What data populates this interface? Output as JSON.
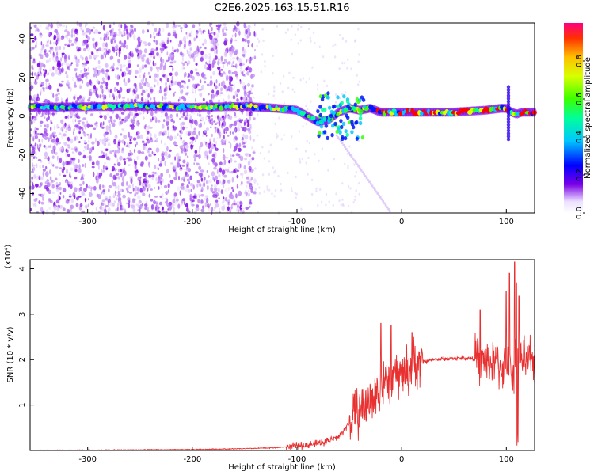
{
  "title": "C2E6.2025.163.15.51.R16",
  "chart_data": [
    {
      "type": "heatmap",
      "xlabel": "Height of straight line (km)",
      "ylabel": "Frequency (Hz)",
      "xlim": [
        -355,
        127
      ],
      "ylim": [
        -50,
        48
      ],
      "xticks": [
        -300,
        -200,
        -100,
        0,
        100
      ],
      "yticks": [
        -40,
        -20,
        0,
        20,
        40
      ],
      "ridge_x": [
        -355,
        -300,
        -250,
        -200,
        -150,
        -120,
        -100,
        -90,
        -80,
        -70,
        -60,
        -50,
        -40,
        -30,
        -20,
        0,
        20,
        50,
        80,
        95,
        100,
        105,
        110,
        115,
        127
      ],
      "ridge_y": [
        4.5,
        4.8,
        5,
        4.5,
        5,
        4,
        3,
        0,
        -3,
        -2,
        2,
        4,
        3,
        4,
        2,
        2,
        2,
        2,
        3,
        4,
        4,
        2,
        1,
        2,
        2
      ],
      "colorbar": {
        "label": "Normalized spectral amplitude",
        "range": [
          0,
          1
        ],
        "ticks": [
          "0.0",
          "0.2",
          "0.4",
          "0.6",
          "0.8"
        ]
      },
      "colors": {
        "hot": "#ff0000",
        "noise": "#7a00e6"
      }
    },
    {
      "type": "line",
      "xlabel": "Height of straight line (km)",
      "ylabel": "SNR (10 * v/v)",
      "yscale_label": "(x10⁴)",
      "xlim": [
        -355,
        127
      ],
      "ylim": [
        0,
        4.2
      ],
      "xticks": [
        -300,
        -200,
        -100,
        0,
        100
      ],
      "yticks": [
        1,
        2,
        3,
        4
      ],
      "series": [
        {
          "color": "#e83030",
          "envelope_x": [
            -355,
            -200,
            -150,
            -120,
            -100,
            -80,
            -60,
            -50,
            -40,
            -30,
            -20,
            -10,
            0,
            10,
            20,
            30,
            40,
            60,
            70,
            80,
            90,
            100,
            105,
            110,
            115,
            127
          ],
          "envelope_y": [
            0,
            0.02,
            0.04,
            0.06,
            0.1,
            0.15,
            0.3,
            0.6,
            0.9,
            1.1,
            1.4,
            1.6,
            1.7,
            1.85,
            1.95,
            2.0,
            2.02,
            2.03,
            2.02,
            1.95,
            1.9,
            1.8,
            1.7,
            1.95,
            2.0,
            1.95
          ],
          "peaks": [
            [
              -20,
              2.8
            ],
            [
              -10,
              2.75
            ],
            [
              10,
              2.6
            ],
            [
              75,
              3.1
            ],
            [
              100,
              3.5
            ],
            [
              103,
              3.9
            ],
            [
              108,
              4.15
            ],
            [
              110,
              3.7
            ],
            [
              112,
              3.4
            ]
          ]
        }
      ]
    }
  ]
}
